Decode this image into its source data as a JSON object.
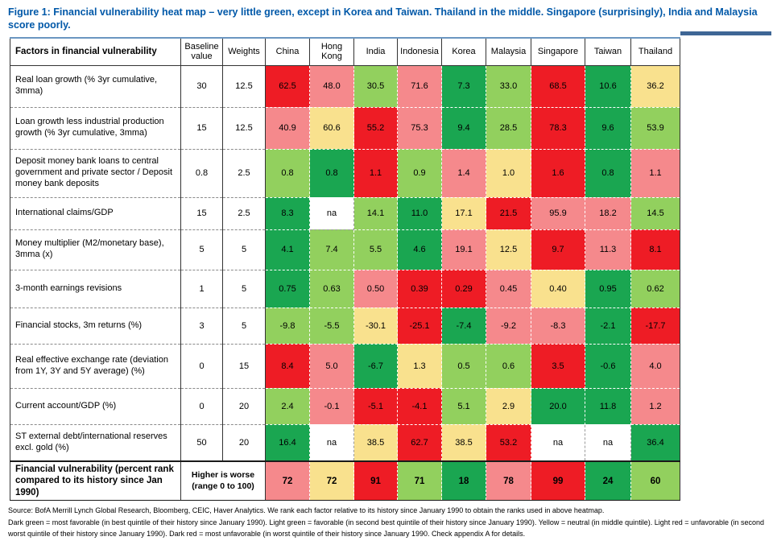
{
  "title": "Figure 1: Financial vulnerability heat map – very little green, except in Korea and Taiwan. Thailand in the middle. Singapore (surprisingly), India and Malaysia score poorly.",
  "colors": {
    "DG": "#1aa651",
    "LG": "#92d05e",
    "Y": "#f9e18e",
    "LR": "#f5898c",
    "R": "#ee1c25",
    "W": "#ffffff"
  },
  "chart_data": {
    "type": "heatmap",
    "columns": [
      "Factors in financial vulnerability",
      "Baseline value",
      "Weights",
      "China",
      "Hong Kong",
      "India",
      "Indonesia",
      "Korea",
      "Malaysia",
      "Singapore",
      "Taiwan",
      "Thailand"
    ],
    "color_scale": "quintile rank vs own history since Jan 1990: DG=best quintile, LG=second best, Y=middle, LR=second worst, R=worst, W=not available",
    "rows": [
      {
        "label": "Real loan growth (% 3yr cumulative, 3mma)",
        "baseline": "30",
        "weight": "12.5",
        "cells": [
          {
            "v": "62.5",
            "c": "R"
          },
          {
            "v": "48.0",
            "c": "LR"
          },
          {
            "v": "30.5",
            "c": "LG"
          },
          {
            "v": "71.6",
            "c": "LR"
          },
          {
            "v": "7.3",
            "c": "DG"
          },
          {
            "v": "33.0",
            "c": "LG"
          },
          {
            "v": "68.5",
            "c": "R"
          },
          {
            "v": "10.6",
            "c": "DG"
          },
          {
            "v": "36.2",
            "c": "Y"
          }
        ]
      },
      {
        "label": "Loan growth less industrial production growth (% 3yr cumulative, 3mma)",
        "baseline": "15",
        "weight": "12.5",
        "cells": [
          {
            "v": "40.9",
            "c": "LR"
          },
          {
            "v": "60.6",
            "c": "Y"
          },
          {
            "v": "55.2",
            "c": "R"
          },
          {
            "v": "75.3",
            "c": "LR"
          },
          {
            "v": "9.4",
            "c": "DG"
          },
          {
            "v": "28.5",
            "c": "LG"
          },
          {
            "v": "78.3",
            "c": "R"
          },
          {
            "v": "9.6",
            "c": "DG"
          },
          {
            "v": "53.9",
            "c": "LG"
          }
        ]
      },
      {
        "label": "Deposit money bank loans to central government and private sector / Deposit money bank deposits",
        "baseline": "0.8",
        "weight": "2.5",
        "cells": [
          {
            "v": "0.8",
            "c": "LG"
          },
          {
            "v": "0.8",
            "c": "DG"
          },
          {
            "v": "1.1",
            "c": "R"
          },
          {
            "v": "0.9",
            "c": "LG"
          },
          {
            "v": "1.4",
            "c": "LR"
          },
          {
            "v": "1.0",
            "c": "Y"
          },
          {
            "v": "1.6",
            "c": "R"
          },
          {
            "v": "0.8",
            "c": "DG"
          },
          {
            "v": "1.1",
            "c": "LR"
          }
        ]
      },
      {
        "label": "International claims/GDP",
        "baseline": "15",
        "weight": "2.5",
        "cells": [
          {
            "v": "8.3",
            "c": "DG"
          },
          {
            "v": "na",
            "c": "W"
          },
          {
            "v": "14.1",
            "c": "LG"
          },
          {
            "v": "11.0",
            "c": "DG"
          },
          {
            "v": "17.1",
            "c": "Y"
          },
          {
            "v": "21.5",
            "c": "R"
          },
          {
            "v": "95.9",
            "c": "LR"
          },
          {
            "v": "18.2",
            "c": "LR"
          },
          {
            "v": "14.5",
            "c": "LG"
          }
        ]
      },
      {
        "label": "Money multiplier (M2/monetary base), 3mma (x)",
        "baseline": "5",
        "weight": "5",
        "cells": [
          {
            "v": "4.1",
            "c": "DG"
          },
          {
            "v": "7.4",
            "c": "LG"
          },
          {
            "v": "5.5",
            "c": "LG"
          },
          {
            "v": "4.6",
            "c": "DG"
          },
          {
            "v": "19.1",
            "c": "LR"
          },
          {
            "v": "12.5",
            "c": "Y"
          },
          {
            "v": "9.7",
            "c": "R"
          },
          {
            "v": "11.3",
            "c": "LR"
          },
          {
            "v": "8.1",
            "c": "R"
          }
        ]
      },
      {
        "label": "3-month earnings revisions",
        "baseline": "1",
        "weight": "5",
        "cells": [
          {
            "v": "0.75",
            "c": "DG"
          },
          {
            "v": "0.63",
            "c": "LG"
          },
          {
            "v": "0.50",
            "c": "LR"
          },
          {
            "v": "0.39",
            "c": "R"
          },
          {
            "v": "0.29",
            "c": "R"
          },
          {
            "v": "0.45",
            "c": "LR"
          },
          {
            "v": "0.40",
            "c": "Y"
          },
          {
            "v": "0.95",
            "c": "DG"
          },
          {
            "v": "0.62",
            "c": "LG"
          }
        ]
      },
      {
        "label": "Financial stocks, 3m returns (%)",
        "baseline": "3",
        "weight": "5",
        "cells": [
          {
            "v": "-9.8",
            "c": "LG"
          },
          {
            "v": "-5.5",
            "c": "LG"
          },
          {
            "v": "-30.1",
            "c": "Y"
          },
          {
            "v": "-25.1",
            "c": "R"
          },
          {
            "v": "-7.4",
            "c": "DG"
          },
          {
            "v": "-9.2",
            "c": "LR"
          },
          {
            "v": "-8.3",
            "c": "LR"
          },
          {
            "v": "-2.1",
            "c": "DG"
          },
          {
            "v": "-17.7",
            "c": "R"
          }
        ]
      },
      {
        "label": "Real effective exchange rate (deviation from 1Y, 3Y and 5Y average) (%)",
        "baseline": "0",
        "weight": "15",
        "cells": [
          {
            "v": "8.4",
            "c": "R"
          },
          {
            "v": "5.0",
            "c": "LR"
          },
          {
            "v": "-6.7",
            "c": "DG"
          },
          {
            "v": "1.3",
            "c": "Y"
          },
          {
            "v": "0.5",
            "c": "LG"
          },
          {
            "v": "0.6",
            "c": "LG"
          },
          {
            "v": "3.5",
            "c": "R"
          },
          {
            "v": "-0.6",
            "c": "DG"
          },
          {
            "v": "4.0",
            "c": "LR"
          }
        ]
      },
      {
        "label": "Current account/GDP (%)",
        "baseline": "0",
        "weight": "20",
        "cells": [
          {
            "v": "2.4",
            "c": "LG"
          },
          {
            "v": "-0.1",
            "c": "LR"
          },
          {
            "v": "-5.1",
            "c": "R"
          },
          {
            "v": "-4.1",
            "c": "R"
          },
          {
            "v": "5.1",
            "c": "LG"
          },
          {
            "v": "2.9",
            "c": "Y"
          },
          {
            "v": "20.0",
            "c": "DG"
          },
          {
            "v": "11.8",
            "c": "DG"
          },
          {
            "v": "1.2",
            "c": "LR"
          }
        ]
      },
      {
        "label": "ST external debt/international reserves excl. gold (%)",
        "baseline": "50",
        "weight": "20",
        "cells": [
          {
            "v": "16.4",
            "c": "DG"
          },
          {
            "v": "na",
            "c": "W"
          },
          {
            "v": "38.5",
            "c": "Y"
          },
          {
            "v": "62.7",
            "c": "R"
          },
          {
            "v": "38.5",
            "c": "Y"
          },
          {
            "v": "53.2",
            "c": "R"
          },
          {
            "v": "na",
            "c": "W"
          },
          {
            "v": "na",
            "c": "W"
          },
          {
            "v": "36.4",
            "c": "DG"
          }
        ]
      }
    ],
    "total_row": {
      "label": "Financial vulnerability (percent rank compared to its history since Jan 1990)",
      "note": "Higher is worse (range 0 to 100)",
      "cells": [
        {
          "v": "72",
          "c": "LR"
        },
        {
          "v": "72",
          "c": "Y"
        },
        {
          "v": "91",
          "c": "R"
        },
        {
          "v": "71",
          "c": "LG"
        },
        {
          "v": "18",
          "c": "DG"
        },
        {
          "v": "78",
          "c": "LR"
        },
        {
          "v": "99",
          "c": "R"
        },
        {
          "v": "24",
          "c": "DG"
        },
        {
          "v": "60",
          "c": "LG"
        }
      ]
    }
  },
  "footer": {
    "source": "Source: BofA Merrill Lynch Global Research, Bloomberg, CEIC, Haver Analytics. We rank each factor relative to its history since January 1990 to obtain the ranks used in above heatmap.",
    "legend": "Dark green = most favorable (in best quintile of their history since January 1990). Light green = favorable (in second best quintile of their history since January 1990). Yellow = neutral (in middle quintile). Light red = unfavorable (in second worst quintile of their history since January 1990). Dark red = most unfavorable (in worst quintile of their history since January 1990. Check appendix A for details."
  }
}
